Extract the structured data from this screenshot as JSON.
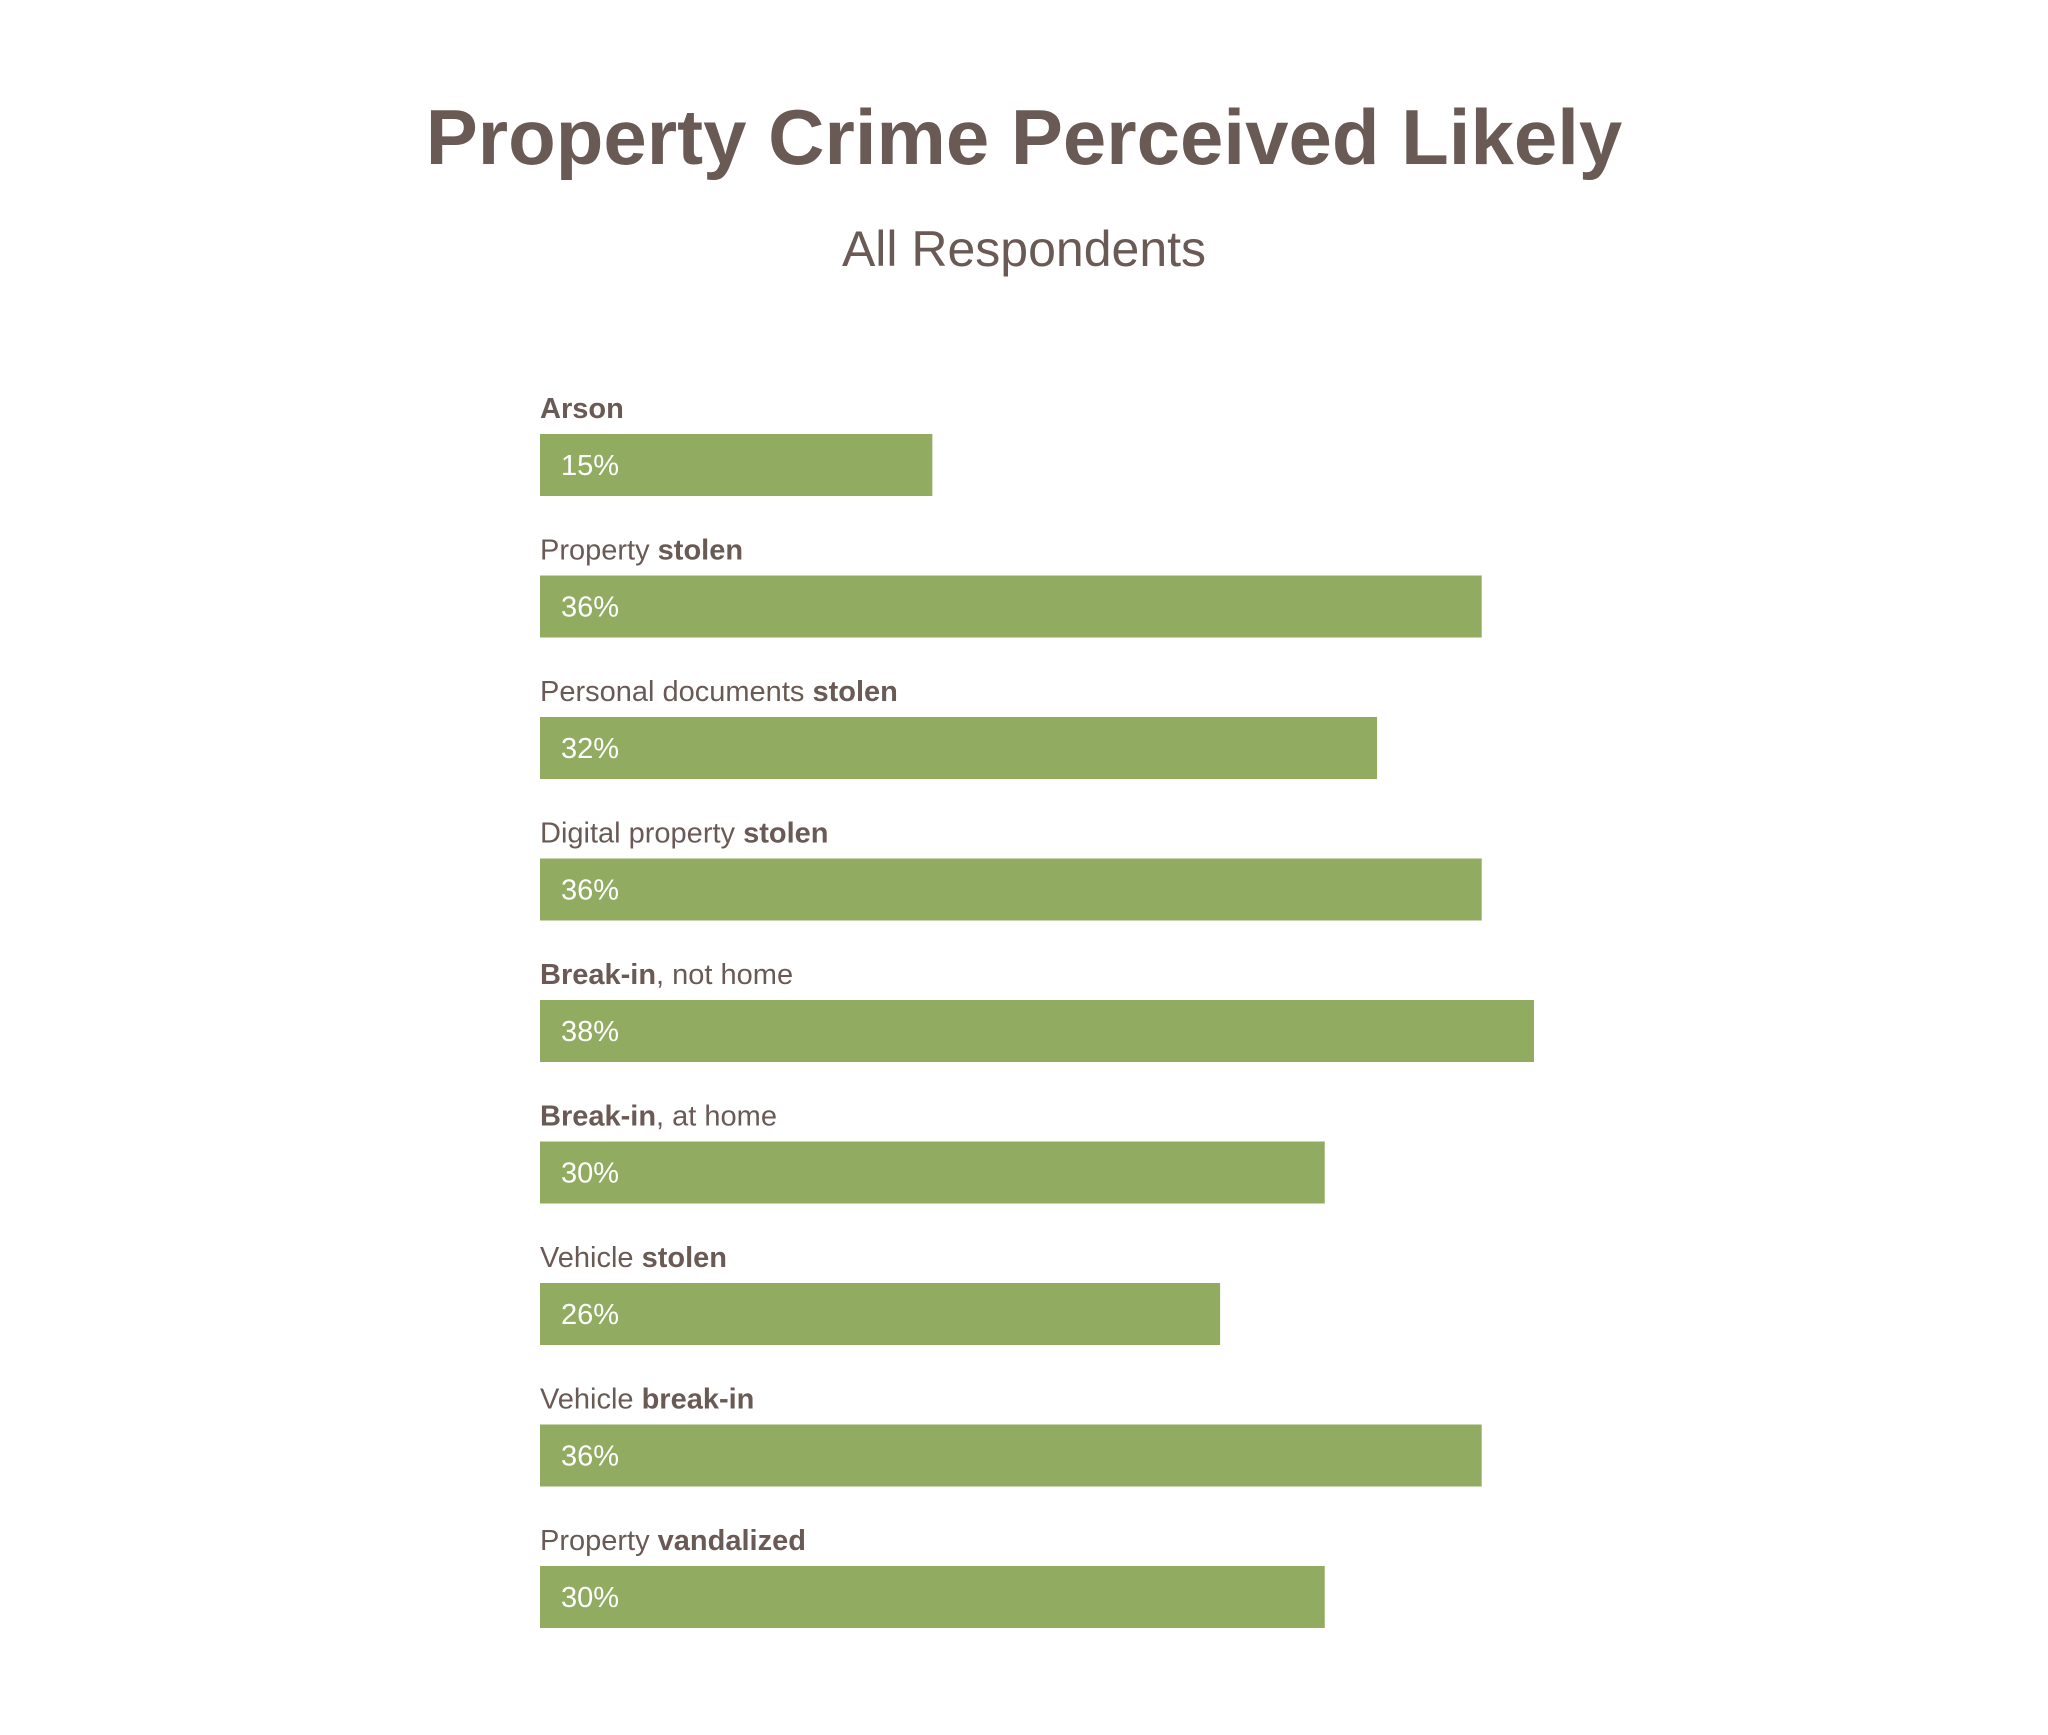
{
  "chart_data": {
    "type": "bar",
    "orientation": "horizontal",
    "title": "Property Crime Perceived Likely",
    "subtitle": "All Respondents",
    "categories": [
      "Arson",
      "Property stolen",
      "Personal documents stolen",
      "Digital property stolen",
      "Break-in, not home",
      "Break-in, at home",
      "Vehicle stolen",
      "Vehicle break-in",
      "Property vandalized"
    ],
    "category_parts": [
      [
        {
          "text": "Arson",
          "bold": true
        }
      ],
      [
        {
          "text": "Property ",
          "bold": false
        },
        {
          "text": "stolen",
          "bold": true
        }
      ],
      [
        {
          "text": "Personal documents ",
          "bold": false
        },
        {
          "text": "stolen",
          "bold": true
        }
      ],
      [
        {
          "text": "Digital property ",
          "bold": false
        },
        {
          "text": "stolen",
          "bold": true
        }
      ],
      [
        {
          "text": "Break-in",
          "bold": true
        },
        {
          "text": ", not home",
          "bold": false
        }
      ],
      [
        {
          "text": "Break-in",
          "bold": true
        },
        {
          "text": ", at home",
          "bold": false
        }
      ],
      [
        {
          "text": "Vehicle ",
          "bold": false
        },
        {
          "text": "stolen",
          "bold": true
        }
      ],
      [
        {
          "text": "Vehicle ",
          "bold": false
        },
        {
          "text": "break-in",
          "bold": true
        }
      ],
      [
        {
          "text": "Property ",
          "bold": false
        },
        {
          "text": "vandalized",
          "bold": true
        }
      ]
    ],
    "values": [
      15,
      36,
      32,
      36,
      38,
      30,
      26,
      36,
      30
    ],
    "value_labels": [
      "15%",
      "36%",
      "32%",
      "36%",
      "38%",
      "30%",
      "26%",
      "36%",
      "30%"
    ],
    "xlim": [
      0,
      38
    ],
    "grid": false,
    "bar_color": "#91ab61",
    "text_color": "#6a5a55",
    "value_label_color": "#ffffff"
  }
}
